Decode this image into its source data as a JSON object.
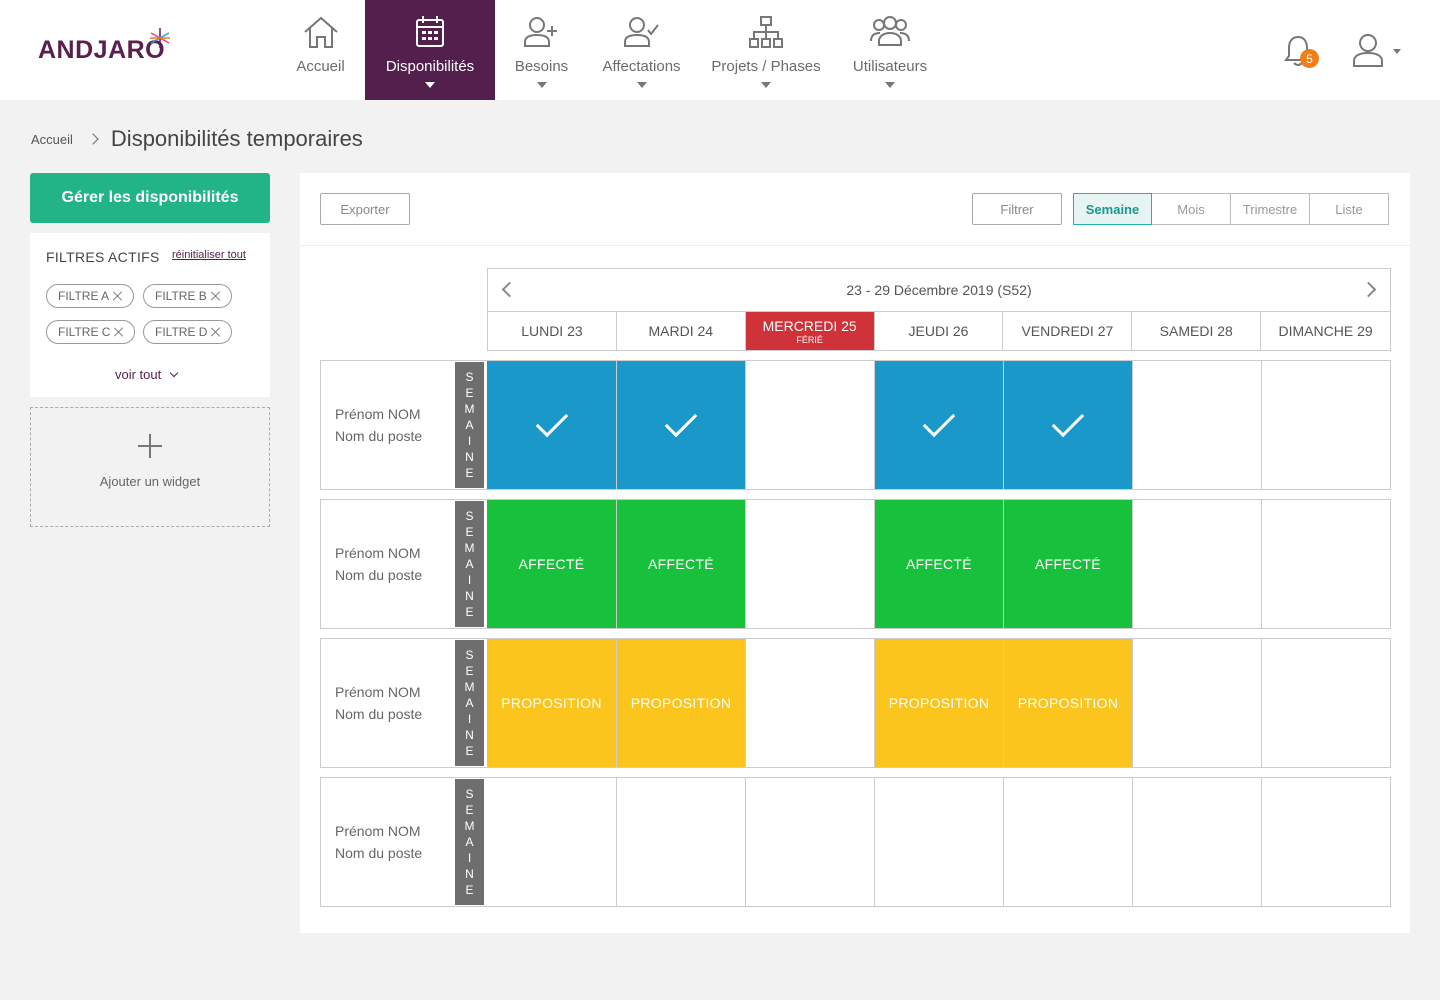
{
  "brand": {
    "name": "ANDJARO"
  },
  "nav": [
    {
      "label": "Accueil",
      "icon": "home-icon",
      "active": false,
      "caret": false
    },
    {
      "label": "Disponibilités",
      "icon": "calendar-icon",
      "active": true,
      "caret": true
    },
    {
      "label": "Besoins",
      "icon": "user-plus-icon",
      "active": false,
      "caret": true
    },
    {
      "label": "Affectations",
      "icon": "user-check-icon",
      "active": false,
      "caret": true
    },
    {
      "label": "Projets / Phases",
      "icon": "hierarchy-icon",
      "active": false,
      "caret": true
    },
    {
      "label": "Utilisateurs",
      "icon": "users-icon",
      "active": false,
      "caret": true
    }
  ],
  "notifications": {
    "count": "5"
  },
  "breadcrumb": {
    "home": "Accueil",
    "title": "Disponibilités temporaires"
  },
  "sidebar": {
    "manage_label": "Gérer les disponibilités",
    "filters_title": "FILTRES ACTIFS",
    "reset_label": "réinitialiser tout",
    "chips": [
      "FILTRE A",
      "FILTRE B",
      "FILTRE C",
      "FILTRE D"
    ],
    "see_all": "voir tout",
    "add_widget": "Ajouter un widget"
  },
  "toolbar": {
    "export_label": "Exporter",
    "filter_label": "Filtrer",
    "views": [
      "Semaine",
      "Mois",
      "Trimestre",
      "Liste"
    ],
    "active_view": "Semaine"
  },
  "calendar": {
    "range": "23 - 29 Décembre 2019 (S52)",
    "days": [
      {
        "label": "LUNDI 23",
        "sub": ""
      },
      {
        "label": "MARDI 24",
        "sub": ""
      },
      {
        "label": "MERCREDI 25",
        "sub": "FÉRIÉ",
        "holiday": true
      },
      {
        "label": "JEUDI 26",
        "sub": ""
      },
      {
        "label": "VENDREDI 27",
        "sub": ""
      },
      {
        "label": "SAMEDI 28",
        "sub": ""
      },
      {
        "label": "DIMANCHE 29",
        "sub": ""
      }
    ],
    "vertical_tab": "SEMAINE",
    "rows": [
      {
        "name": "Prénom NOM",
        "position": "Nom du poste",
        "cells": [
          "available",
          "available",
          "",
          "available",
          "available",
          "",
          ""
        ],
        "text": ""
      },
      {
        "name": "Prénom NOM",
        "position": "Nom du poste",
        "cells": [
          "assigned",
          "assigned",
          "",
          "assigned",
          "assigned",
          "",
          ""
        ],
        "text": "AFFECTÉ"
      },
      {
        "name": "Prénom NOM",
        "position": "Nom du poste",
        "cells": [
          "proposal",
          "proposal",
          "",
          "proposal",
          "proposal",
          "",
          ""
        ],
        "text": "PROPOSITION"
      },
      {
        "name": "Prénom NOM",
        "position": "Nom du poste",
        "cells": [
          "",
          "",
          "",
          "",
          "",
          "",
          ""
        ],
        "text": ""
      }
    ]
  },
  "colors": {
    "brand_purple": "#531f4d",
    "green_button": "#22b387",
    "available": "#1a98c9",
    "assigned": "#17c13b",
    "proposal": "#fbc51e",
    "holiday": "#cf3238",
    "badge": "#f07f1b"
  }
}
